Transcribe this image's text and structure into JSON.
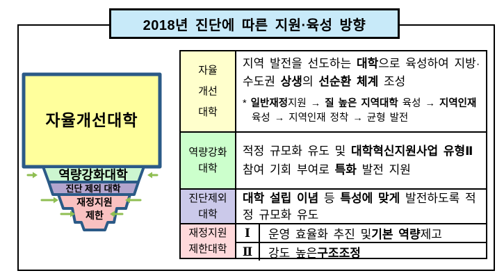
{
  "title": "2018년 진단에 따른 지원·육성 방향",
  "colors": {
    "title_bg": "#c8eaf9",
    "funnel_border": "#2b5a87",
    "arrow_green": "#8fbe52",
    "funnel_yellow": "#ffff9c",
    "funnel_green": "#ccf6d0",
    "funnel_purple": "#b3a5ce",
    "funnel_pink": "#f9c1c1",
    "label_yellow": "#ffffcc",
    "label_green": "#ccffcc",
    "label_purple": "#cbc9ea",
    "label_pink": "#ffd9db"
  },
  "funnel": {
    "tiers": [
      {
        "label": "자율개선대학"
      },
      {
        "label": "역량강화대학"
      },
      {
        "label": "진단 제외 대학"
      },
      {
        "label_line1": "재정지원",
        "label_line2": "제한"
      }
    ]
  },
  "table": {
    "rows": [
      {
        "label_lines": [
          "자율",
          "개선",
          "대학"
        ],
        "main_segments": [
          {
            "t": "지역 발전을 선도하는 "
          },
          {
            "t": "대학",
            "b": 1
          },
          {
            "t": "으로 육성하여 지방·수도권 "
          },
          {
            "t": "상생",
            "b": 1
          },
          {
            "t": "의 "
          },
          {
            "t": "선순환 체계",
            "b": 1
          },
          {
            "t": " 조성"
          }
        ],
        "note_segments": [
          {
            "t": "* "
          },
          {
            "t": "일반재정",
            "b": 1
          },
          {
            "t": "지원 → "
          },
          {
            "t": "질 높은 지역대학",
            "b": 1
          },
          {
            "t": " 육성 → "
          },
          {
            "t": "지역인재",
            "b": 1
          },
          {
            "t": " 육성 → 지역인재 정착 → 균형 발전"
          }
        ]
      },
      {
        "label_lines": [
          "역량강화",
          "대학"
        ],
        "main_segments": [
          {
            "t": "적정 규모화 유도 및 "
          },
          {
            "t": "대학혁신지원사업 유형Ⅱ",
            "b": 1
          },
          {
            "t": " 참여 기회 부여로 "
          },
          {
            "t": "특화",
            "b": 1
          },
          {
            "t": " 발전 지원"
          }
        ]
      },
      {
        "label_lines": [
          "진단제외",
          "대학"
        ],
        "main_segments": [
          {
            "t": "대학 설립 이념",
            "b": 1
          },
          {
            "t": " 등 "
          },
          {
            "t": "특성에 맞게",
            "b": 1
          },
          {
            "t": " 발전하도록 적정 규모화 유도"
          }
        ]
      },
      {
        "label_lines": [
          "재정지원",
          "제한대학"
        ],
        "sub_rows": [
          {
            "marker": "Ⅰ",
            "segments": [
              {
                "t": "운영 효율화 추진 및 "
              },
              {
                "t": "기본 역량",
                "b": 1
              },
              {
                "t": " 제고"
              }
            ]
          },
          {
            "marker": "Ⅱ",
            "segments": [
              {
                "t": "강도 높은 "
              },
              {
                "t": "구조조정",
                "b": 1
              }
            ]
          }
        ]
      }
    ]
  }
}
